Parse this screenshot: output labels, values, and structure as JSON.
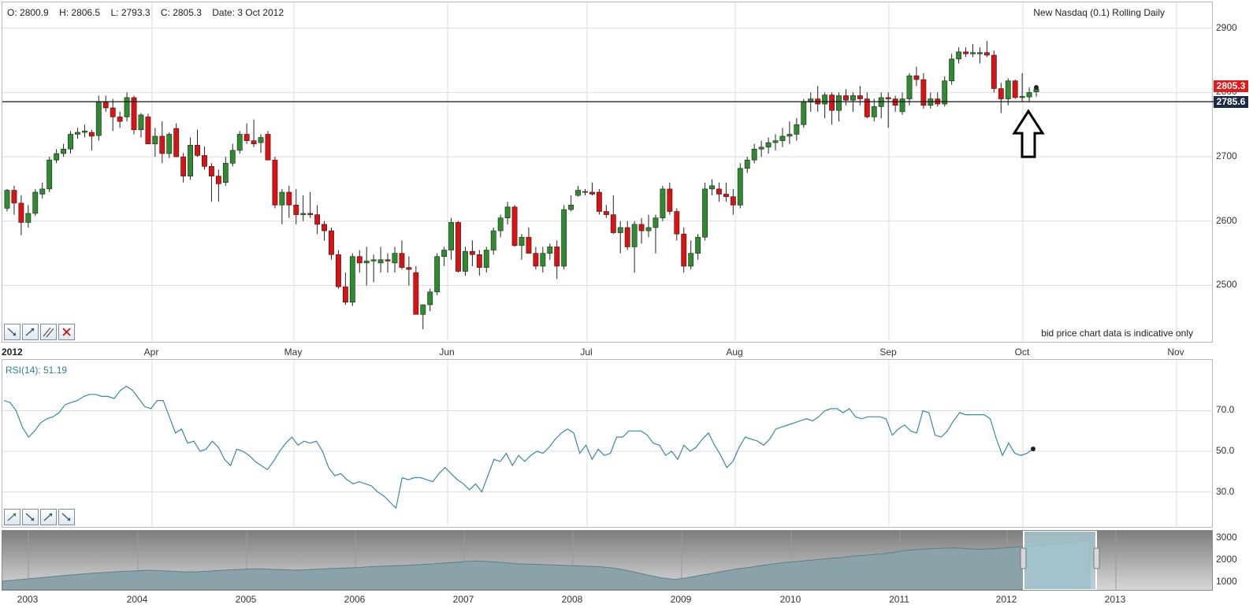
{
  "ohlc_bar": {
    "open_label": "O:",
    "open": "2800.9",
    "high_label": "H:",
    "high": "2806.5",
    "low_label": "L:",
    "low": "2793.3",
    "close_label": "C:",
    "close": "2805.3",
    "date_label": "Date:",
    "date": "3 Oct 2012"
  },
  "instrument_title": "New Nasdaq (0.1) Rolling Daily",
  "disclaimer": "bid price chart data is indicative only",
  "rsi_label": "RSI(14): 51.19",
  "current_price_tag": "2805.3",
  "line_price_tag": "2785.6",
  "colors": {
    "up": "#2e8b2e",
    "down": "#dd1111",
    "rsi_line": "#3a8aa0",
    "grid": "#dddddd",
    "current_tag_bg": "#e21a1a",
    "line_tag_bg": "#1d2a44",
    "navigator_fill": "#8aa3aa",
    "navigator_window": "#a9cdd6"
  },
  "icons": [
    "trendline-down-icon",
    "trendline-up-icon",
    "parallel-lines-icon",
    "delete-x-icon"
  ],
  "chart_data": [
    {
      "type": "candlestick",
      "x_start_label": "2012",
      "x_tick_labels": [
        "Apr",
        "May",
        "Jun",
        "Jul",
        "Aug",
        "Sep",
        "Oct",
        "Nov"
      ],
      "ylim": [
        2410,
        2940
      ],
      "y_ticks": [
        2500,
        2600,
        2700,
        2800,
        2900
      ],
      "horizontal_line": 2785.6,
      "last_close": 2805.3,
      "annotation": "arrow pointing up at horizontal line, early Oct",
      "candles": [
        [
          2620,
          2650,
          2615,
          2648
        ],
        [
          2648,
          2655,
          2610,
          2628
        ],
        [
          2628,
          2640,
          2578,
          2598
        ],
        [
          2598,
          2625,
          2590,
          2612
        ],
        [
          2612,
          2650,
          2608,
          2645
        ],
        [
          2642,
          2660,
          2635,
          2650
        ],
        [
          2650,
          2700,
          2645,
          2695
        ],
        [
          2695,
          2712,
          2690,
          2705
        ],
        [
          2705,
          2720,
          2700,
          2712
        ],
        [
          2712,
          2740,
          2705,
          2735
        ],
        [
          2735,
          2745,
          2728,
          2738
        ],
        [
          2738,
          2750,
          2730,
          2740
        ],
        [
          2738,
          2742,
          2710,
          2732
        ],
        [
          2733,
          2795,
          2725,
          2785
        ],
        [
          2785,
          2795,
          2770,
          2776
        ],
        [
          2776,
          2790,
          2740,
          2762
        ],
        [
          2762,
          2770,
          2745,
          2755
        ],
        [
          2762,
          2800,
          2755,
          2792
        ],
        [
          2792,
          2795,
          2735,
          2742
        ],
        [
          2742,
          2768,
          2730,
          2765
        ],
        [
          2762,
          2767,
          2720,
          2720
        ],
        [
          2720,
          2745,
          2700,
          2732
        ],
        [
          2732,
          2755,
          2690,
          2705
        ],
        [
          2705,
          2738,
          2698,
          2735
        ],
        [
          2744,
          2752,
          2700,
          2700
        ],
        [
          2700,
          2706,
          2660,
          2670
        ],
        [
          2670,
          2730,
          2664,
          2718
        ],
        [
          2718,
          2742,
          2700,
          2702
        ],
        [
          2702,
          2716,
          2680,
          2685
        ],
        [
          2685,
          2690,
          2630,
          2670
        ],
        [
          2670,
          2680,
          2630,
          2658
        ],
        [
          2660,
          2700,
          2655,
          2690
        ],
        [
          2690,
          2720,
          2685,
          2710
        ],
        [
          2710,
          2740,
          2705,
          2735
        ],
        [
          2735,
          2752,
          2720,
          2725
        ],
        [
          2725,
          2758,
          2715,
          2720
        ],
        [
          2722,
          2735,
          2706,
          2730
        ],
        [
          2735,
          2740,
          2696,
          2695
        ],
        [
          2695,
          2700,
          2620,
          2625
        ],
        [
          2625,
          2650,
          2595,
          2645
        ],
        [
          2645,
          2655,
          2605,
          2625
        ],
        [
          2625,
          2650,
          2595,
          2610
        ],
        [
          2610,
          2640,
          2600,
          2612
        ],
        [
          2612,
          2645,
          2605,
          2610
        ],
        [
          2610,
          2625,
          2580,
          2595
        ],
        [
          2595,
          2600,
          2570,
          2585
        ],
        [
          2585,
          2590,
          2540,
          2548
        ],
        [
          2548,
          2555,
          2495,
          2498
        ],
        [
          2498,
          2520,
          2470,
          2474
        ],
        [
          2474,
          2550,
          2468,
          2545
        ],
        [
          2545,
          2555,
          2520,
          2535
        ],
        [
          2535,
          2560,
          2500,
          2538
        ],
        [
          2538,
          2548,
          2505,
          2540
        ],
        [
          2535,
          2560,
          2520,
          2540
        ],
        [
          2540,
          2550,
          2520,
          2538
        ],
        [
          2535,
          2560,
          2520,
          2550
        ],
        [
          2550,
          2570,
          2525,
          2528
        ],
        [
          2528,
          2545,
          2500,
          2525
        ],
        [
          2520,
          2530,
          2455,
          2455
        ],
        [
          2455,
          2470,
          2432,
          2470
        ],
        [
          2470,
          2495,
          2460,
          2490
        ],
        [
          2490,
          2550,
          2485,
          2545
        ],
        [
          2545,
          2560,
          2530,
          2555
        ],
        [
          2555,
          2605,
          2540,
          2598
        ],
        [
          2598,
          2600,
          2520,
          2522
        ],
        [
          2522,
          2560,
          2515,
          2553
        ],
        [
          2553,
          2570,
          2530,
          2548
        ],
        [
          2548,
          2555,
          2515,
          2528
        ],
        [
          2528,
          2560,
          2520,
          2555
        ],
        [
          2555,
          2590,
          2548,
          2585
        ],
        [
          2585,
          2610,
          2575,
          2605
        ],
        [
          2605,
          2630,
          2595,
          2622
        ],
        [
          2622,
          2625,
          2560,
          2562
        ],
        [
          2562,
          2580,
          2540,
          2575
        ],
        [
          2575,
          2590,
          2550,
          2550
        ],
        [
          2550,
          2560,
          2525,
          2530
        ],
        [
          2530,
          2560,
          2520,
          2550
        ],
        [
          2550,
          2565,
          2540,
          2560
        ],
        [
          2560,
          2570,
          2510,
          2530
        ],
        [
          2530,
          2625,
          2525,
          2618
        ],
        [
          2618,
          2640,
          2615,
          2625
        ],
        [
          2640,
          2655,
          2638,
          2648
        ],
        [
          2646,
          2650,
          2640,
          2645
        ],
        [
          2645,
          2660,
          2640,
          2642
        ],
        [
          2645,
          2650,
          2610,
          2615
        ],
        [
          2615,
          2625,
          2605,
          2610
        ],
        [
          2610,
          2640,
          2580,
          2582
        ],
        [
          2582,
          2600,
          2550,
          2590
        ],
        [
          2590,
          2600,
          2555,
          2560
        ],
        [
          2560,
          2600,
          2520,
          2595
        ],
        [
          2595,
          2605,
          2565,
          2585
        ],
        [
          2585,
          2610,
          2575,
          2590
        ],
        [
          2590,
          2610,
          2550,
          2605
        ],
        [
          2605,
          2655,
          2600,
          2650
        ],
        [
          2650,
          2660,
          2610,
          2615
        ],
        [
          2615,
          2620,
          2570,
          2580
        ],
        [
          2580,
          2590,
          2520,
          2530
        ],
        [
          2530,
          2570,
          2525,
          2550
        ],
        [
          2550,
          2580,
          2540,
          2575
        ],
        [
          2575,
          2660,
          2570,
          2650
        ],
        [
          2650,
          2665,
          2640,
          2655
        ],
        [
          2650,
          2660,
          2630,
          2642
        ],
        [
          2642,
          2660,
          2630,
          2638
        ],
        [
          2638,
          2650,
          2610,
          2625
        ],
        [
          2625,
          2690,
          2620,
          2682
        ],
        [
          2682,
          2700,
          2675,
          2695
        ],
        [
          2695,
          2720,
          2690,
          2712
        ],
        [
          2712,
          2725,
          2700,
          2715
        ],
        [
          2715,
          2730,
          2705,
          2722
        ],
        [
          2722,
          2735,
          2710,
          2725
        ],
        [
          2725,
          2745,
          2715,
          2732
        ],
        [
          2732,
          2755,
          2720,
          2735
        ],
        [
          2735,
          2760,
          2725,
          2750
        ],
        [
          2750,
          2790,
          2745,
          2785
        ],
        [
          2785,
          2800,
          2770,
          2790
        ],
        [
          2790,
          2810,
          2770,
          2782
        ],
        [
          2782,
          2800,
          2760,
          2796
        ],
        [
          2796,
          2800,
          2750,
          2772
        ],
        [
          2772,
          2800,
          2755,
          2795
        ],
        [
          2795,
          2805,
          2780,
          2788
        ],
        [
          2788,
          2800,
          2770,
          2795
        ],
        [
          2795,
          2810,
          2780,
          2790
        ],
        [
          2790,
          2800,
          2760,
          2762
        ],
        [
          2762,
          2790,
          2755,
          2778
        ],
        [
          2778,
          2800,
          2760,
          2792
        ],
        [
          2792,
          2800,
          2745,
          2790
        ],
        [
          2790,
          2795,
          2770,
          2780
        ],
        [
          2770,
          2800,
          2765,
          2790
        ],
        [
          2790,
          2830,
          2780,
          2826
        ],
        [
          2826,
          2840,
          2810,
          2820
        ],
        [
          2820,
          2830,
          2775,
          2780
        ],
        [
          2780,
          2800,
          2775,
          2790
        ],
        [
          2790,
          2800,
          2778,
          2782
        ],
        [
          2782,
          2825,
          2778,
          2818
        ],
        [
          2818,
          2860,
          2812,
          2852
        ],
        [
          2852,
          2870,
          2845,
          2863
        ],
        [
          2863,
          2870,
          2855,
          2860
        ],
        [
          2860,
          2875,
          2855,
          2862
        ],
        [
          2860,
          2870,
          2845,
          2862
        ],
        [
          2862,
          2880,
          2855,
          2858
        ],
        [
          2858,
          2865,
          2800,
          2806
        ],
        [
          2806,
          2815,
          2768,
          2790
        ],
        [
          2790,
          2822,
          2780,
          2818
        ],
        [
          2818,
          2820,
          2790,
          2792
        ],
        [
          2792,
          2830,
          2786,
          2794
        ],
        [
          2793,
          2808,
          2785,
          2800
        ],
        [
          2800.9,
          2806.5,
          2793.3,
          2805.3
        ]
      ]
    },
    {
      "type": "line",
      "title": "RSI(14): 51.19",
      "ylim": [
        12,
        95
      ],
      "y_ticks": [
        30.0,
        50.0,
        70.0
      ],
      "y_tick_labels": [
        "30.0",
        "50.0",
        "70.0"
      ],
      "series": [
        {
          "values": [
            75,
            74,
            70,
            62,
            57,
            60,
            64,
            66,
            67,
            69,
            73,
            74,
            75,
            77,
            78,
            78,
            77,
            77,
            76,
            80,
            82,
            80,
            76,
            72,
            71,
            75,
            75,
            67,
            59,
            61,
            54,
            55,
            50,
            51,
            55,
            52,
            46,
            43,
            51,
            50,
            48,
            45,
            43,
            41,
            45,
            50,
            54,
            57,
            53,
            55,
            54,
            55,
            50,
            42,
            38,
            39,
            36,
            34,
            35,
            34,
            33,
            30,
            28,
            25,
            22,
            37,
            36,
            37,
            37,
            36,
            35,
            39,
            42,
            39,
            36,
            34,
            31,
            34,
            30,
            38,
            46,
            45,
            49,
            43,
            48,
            45,
            48,
            50,
            49,
            52,
            56,
            59,
            61,
            59,
            49,
            53,
            46,
            51,
            48,
            49,
            57,
            57,
            60,
            60,
            60,
            58,
            54,
            53,
            48,
            50,
            46,
            53,
            50,
            52,
            56,
            59,
            53,
            48,
            42,
            45,
            52,
            57,
            56,
            55,
            53,
            56,
            61,
            62,
            63,
            64,
            65,
            66,
            65,
            67,
            70,
            71,
            71,
            69,
            71,
            67,
            66,
            67,
            67,
            67,
            66,
            58,
            61,
            63,
            60,
            59,
            70,
            69,
            58,
            57,
            60,
            65,
            69,
            68,
            68,
            68,
            68,
            66,
            56,
            48,
            54,
            49,
            48,
            49,
            51.19
          ]
        }
      ]
    },
    {
      "type": "area",
      "x_tick_labels": [
        "2003",
        "2004",
        "2005",
        "2006",
        "2007",
        "2008",
        "2009",
        "2010",
        "2011",
        "2012",
        "2013"
      ],
      "y_tick_labels": [
        "3000",
        "2000",
        "1000"
      ],
      "ylim": [
        600,
        3300
      ],
      "values": [
        1000,
        1050,
        1100,
        1150,
        1200,
        1250,
        1300,
        1350,
        1380,
        1420,
        1450,
        1470,
        1500,
        1480,
        1450,
        1420,
        1430,
        1460,
        1500,
        1520,
        1550,
        1560,
        1540,
        1520,
        1500,
        1520,
        1550,
        1580,
        1600,
        1620,
        1650,
        1680,
        1700,
        1720,
        1750,
        1780,
        1820,
        1860,
        1900,
        1920,
        1880,
        1850,
        1800,
        1780,
        1760,
        1740,
        1720,
        1700,
        1680,
        1650,
        1600,
        1500,
        1380,
        1250,
        1150,
        1080,
        1150,
        1250,
        1350,
        1450,
        1550,
        1620,
        1700,
        1780,
        1850,
        1900,
        1950,
        2000,
        2050,
        2100,
        2150,
        2200,
        2250,
        2320,
        2400,
        2450,
        2480,
        2500,
        2520,
        2480,
        2450,
        2480,
        2520,
        2550,
        2600,
        2650,
        2700,
        2750,
        2800,
        2850
      ]
    }
  ]
}
